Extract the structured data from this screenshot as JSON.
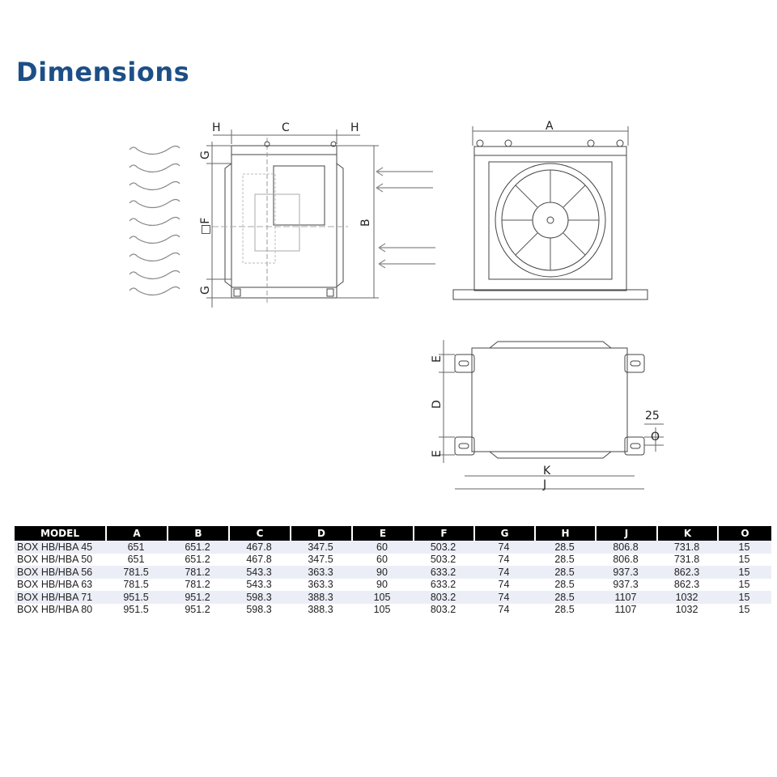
{
  "title": "Dimensions",
  "drawing_labels": {
    "side": {
      "h_left": "H",
      "c": "C",
      "h_right": "H",
      "g_top": "G",
      "f": "□F",
      "g_bottom": "G",
      "b": "B"
    },
    "front": {
      "a": "A"
    },
    "bottom": {
      "e_top": "E",
      "d": "D",
      "e_bottom": "E",
      "dim_25": "25",
      "o": "O",
      "k": "K",
      "j": "J"
    }
  },
  "table": {
    "headers": [
      "MODEL",
      "A",
      "B",
      "C",
      "D",
      "E",
      "F",
      "G",
      "H",
      "J",
      "K",
      "O"
    ],
    "rows": [
      [
        "BOX HB/HBA 45",
        "651",
        "651.2",
        "467.8",
        "347.5",
        "60",
        "503.2",
        "74",
        "28.5",
        "806.8",
        "731.8",
        "15"
      ],
      [
        "BOX HB/HBA 50",
        "651",
        "651.2",
        "467.8",
        "347.5",
        "60",
        "503.2",
        "74",
        "28.5",
        "806.8",
        "731.8",
        "15"
      ],
      [
        "BOX HB/HBA 56",
        "781.5",
        "781.2",
        "543.3",
        "363.3",
        "90",
        "633.2",
        "74",
        "28.5",
        "937.3",
        "862.3",
        "15"
      ],
      [
        "BOX HB/HBA 63",
        "781.5",
        "781.2",
        "543.3",
        "363.3",
        "90",
        "633.2",
        "74",
        "28.5",
        "937.3",
        "862.3",
        "15"
      ],
      [
        "BOX HB/HBA 71",
        "951.5",
        "951.2",
        "598.3",
        "388.3",
        "105",
        "803.2",
        "74",
        "28.5",
        "1107",
        "1032",
        "15"
      ],
      [
        "BOX HB/HBA 80",
        "951.5",
        "951.2",
        "598.3",
        "388.3",
        "105",
        "803.2",
        "74",
        "28.5",
        "1107",
        "1032",
        "15"
      ]
    ]
  },
  "colors": {
    "title": "#1d4f86",
    "header_bg": "#000000",
    "alt_row": "#eceef7"
  }
}
